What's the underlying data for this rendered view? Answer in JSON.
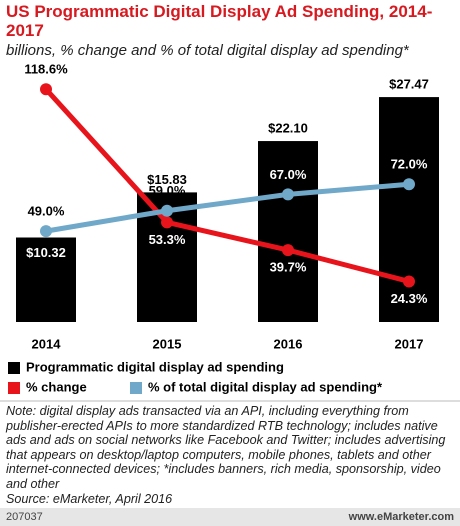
{
  "chart_data": {
    "type": "bar",
    "title": "US Programmatic Digital Display Ad Spending, 2014-2017",
    "subtitle": "billions, % change and % of total digital display ad spending*",
    "categories": [
      "2014",
      "2015",
      "2016",
      "2017"
    ],
    "ylim": [
      0,
      32
    ],
    "y2lim": [
      0,
      130
    ],
    "series": [
      {
        "name": "Programmatic digital display ad spending",
        "type": "bar",
        "color": "#000000",
        "values": [
          10.32,
          15.83,
          22.1,
          27.47
        ],
        "value_labels": [
          "$10.32",
          "$15.83",
          "$22.10",
          "$27.47"
        ]
      },
      {
        "name": "% change",
        "type": "line",
        "axis": "y2",
        "color": "#e8141b",
        "values": [
          118.6,
          53.3,
          39.7,
          24.3
        ],
        "value_labels": [
          "118.6%",
          "53.3%",
          "39.7%",
          "24.3%"
        ]
      },
      {
        "name": "% of total digital display ad spending*",
        "type": "line",
        "axis": "y2",
        "color": "#6fa8c8",
        "values": [
          49.0,
          59.0,
          67.0,
          72.0
        ],
        "value_labels": [
          "49.0%",
          "59.0%",
          "67.0%",
          "72.0%"
        ]
      }
    ],
    "note": "Note: digital display ads transacted via an API, including everything from publisher-erected APIs to more standardized RTB technology; includes native ads and ads on social networks like Facebook and Twitter; includes advertising that appears on desktop/laptop computers, mobile phones, tablets and other internet-connected devices; *includes banners, rich media, sponsorship, video and other",
    "source": "Source: eMarketer, April 2016",
    "chart_id": "207037",
    "website": "www.eMarketer.com"
  }
}
